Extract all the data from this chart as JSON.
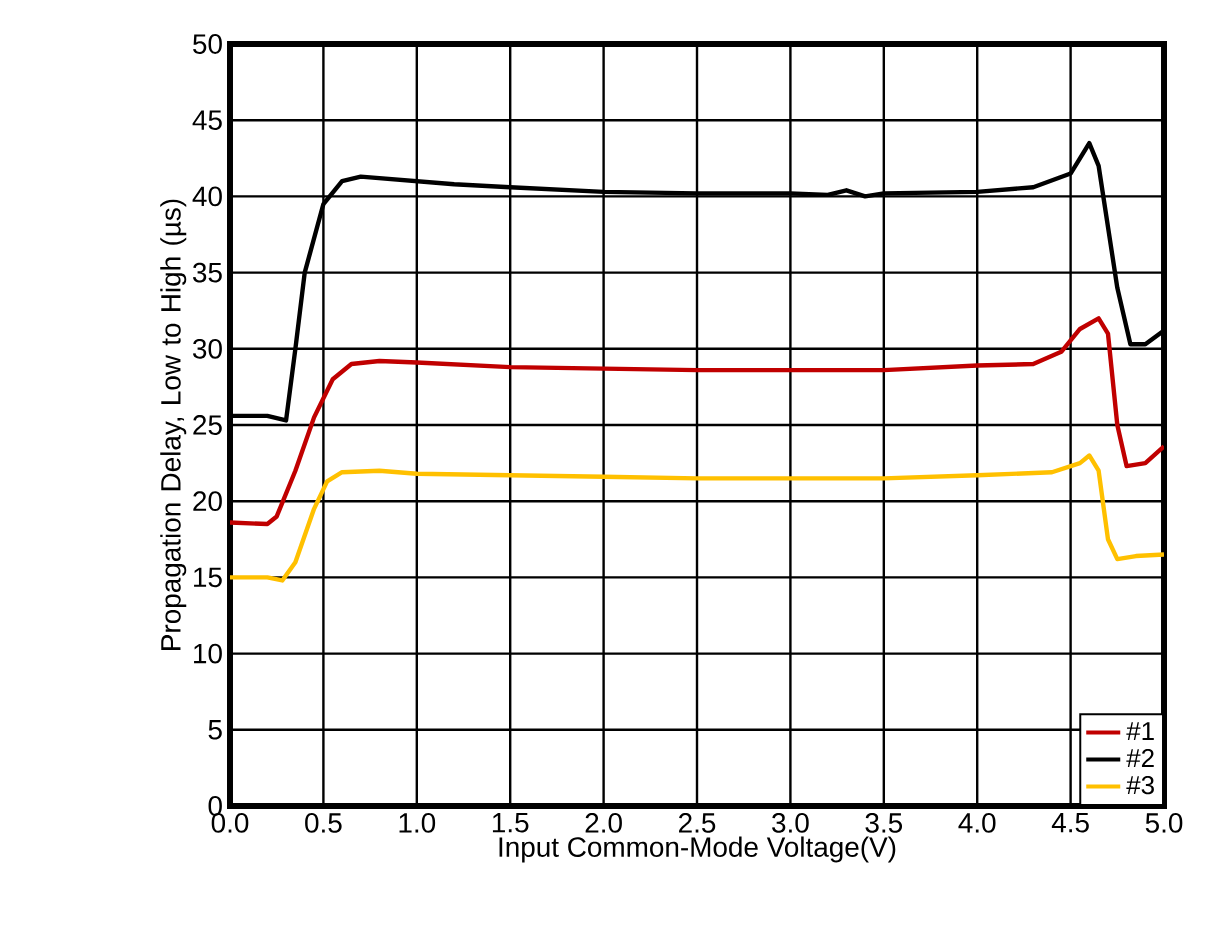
{
  "chart_data": {
    "type": "line",
    "xlabel": "Input Common-Mode Voltage(V)",
    "ylabel": "Propagation Delay, Low to High (µs)",
    "xlim": [
      0,
      5
    ],
    "ylim": [
      0,
      50
    ],
    "xticks": [
      {
        "value": 0,
        "label": "0.0"
      },
      {
        "value": 0.5,
        "label": "0.5"
      },
      {
        "value": 1,
        "label": "1.0"
      },
      {
        "value": 1.5,
        "label": "1.5"
      },
      {
        "value": 2,
        "label": "2.0"
      },
      {
        "value": 2.5,
        "label": "2.5"
      },
      {
        "value": 3,
        "label": "3.0"
      },
      {
        "value": 3.5,
        "label": "3.5"
      },
      {
        "value": 4,
        "label": "4.0"
      },
      {
        "value": 4.5,
        "label": "4.5"
      },
      {
        "value": 5,
        "label": "5.0"
      }
    ],
    "yticks": [
      0,
      5,
      10,
      15,
      20,
      25,
      30,
      35,
      40,
      45,
      50
    ],
    "grid": true,
    "legend": "bottom right",
    "line_style": "solid",
    "marker": "none",
    "series": [
      {
        "name": "#1",
        "color": "#c00000",
        "x": [
          0,
          0.2,
          0.25,
          0.35,
          0.45,
          0.55,
          0.65,
          0.8,
          1.0,
          1.5,
          2.0,
          2.5,
          3.0,
          3.5,
          4.0,
          4.3,
          4.45,
          4.55,
          4.65,
          4.7,
          4.75,
          4.8,
          4.9,
          5.0
        ],
        "values": [
          18.6,
          18.5,
          19,
          22,
          25.5,
          28,
          29,
          29.2,
          29.1,
          28.8,
          28.7,
          28.6,
          28.6,
          28.6,
          28.9,
          29.0,
          29.8,
          31.3,
          32.0,
          31,
          25,
          22.3,
          22.5,
          23.6
        ]
      },
      {
        "name": "#2",
        "color": "#000000",
        "x": [
          0,
          0.2,
          0.3,
          0.35,
          0.4,
          0.5,
          0.6,
          0.7,
          0.8,
          1.0,
          1.2,
          1.5,
          2.0,
          2.5,
          3.0,
          3.2,
          3.3,
          3.4,
          3.5,
          4.0,
          4.3,
          4.5,
          4.6,
          4.65,
          4.75,
          4.82,
          4.9,
          5.0
        ],
        "values": [
          25.6,
          25.6,
          25.3,
          30,
          35,
          39.5,
          41,
          41.3,
          41.2,
          41.0,
          40.8,
          40.6,
          40.3,
          40.2,
          40.2,
          40.1,
          40.4,
          40.0,
          40.2,
          40.3,
          40.6,
          41.5,
          43.5,
          42,
          34,
          30.3,
          30.3,
          31.2
        ]
      },
      {
        "name": "#3",
        "color": "#ffc000",
        "x": [
          0,
          0.2,
          0.28,
          0.35,
          0.45,
          0.52,
          0.6,
          0.8,
          1.0,
          1.5,
          2.0,
          2.5,
          3.0,
          3.5,
          4.0,
          4.4,
          4.55,
          4.6,
          4.65,
          4.7,
          4.75,
          4.85,
          5.0
        ],
        "values": [
          15.0,
          15.0,
          14.8,
          16,
          19.5,
          21.3,
          21.9,
          22.0,
          21.8,
          21.7,
          21.6,
          21.5,
          21.5,
          21.5,
          21.7,
          21.9,
          22.5,
          23.0,
          22,
          17.5,
          16.2,
          16.4,
          16.5
        ]
      }
    ]
  }
}
